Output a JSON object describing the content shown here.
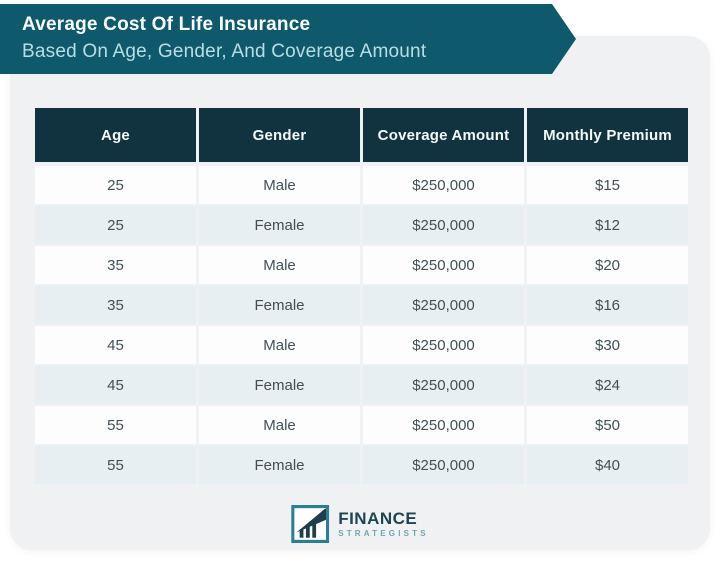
{
  "chart_data": {
    "type": "table",
    "title": "Average Cost Of Life Insurance",
    "subtitle": "Based On Age, Gender, And Coverage Amount",
    "columns": [
      "Age",
      "Gender",
      "Coverage Amount",
      "Monthly Premium"
    ],
    "rows": [
      [
        "25",
        "Male",
        "$250,000",
        "$15"
      ],
      [
        "25",
        "Female",
        "$250,000",
        "$12"
      ],
      [
        "35",
        "Male",
        "$250,000",
        "$20"
      ],
      [
        "35",
        "Female",
        "$250,000",
        "$16"
      ],
      [
        "45",
        "Male",
        "$250,000",
        "$30"
      ],
      [
        "45",
        "Female",
        "$250,000",
        "$24"
      ],
      [
        "55",
        "Male",
        "$250,000",
        "$50"
      ],
      [
        "55",
        "Female",
        "$250,000",
        "$40"
      ]
    ]
  },
  "footer": {
    "brand_name": "FINANCE",
    "brand_tagline": "STRATEGISTS"
  },
  "colors": {
    "banner_teal": "#0e5a6c",
    "header_navy": "#10333f",
    "alt_row": "#e8eff2",
    "card_bg": "#f0f1f2",
    "cell_text": "#414f57",
    "subtitle_text": "#b9dde4",
    "logo_dark": "#1e4553",
    "logo_light": "#70a5b4",
    "logo_icon_teal": "#2b7f92"
  }
}
